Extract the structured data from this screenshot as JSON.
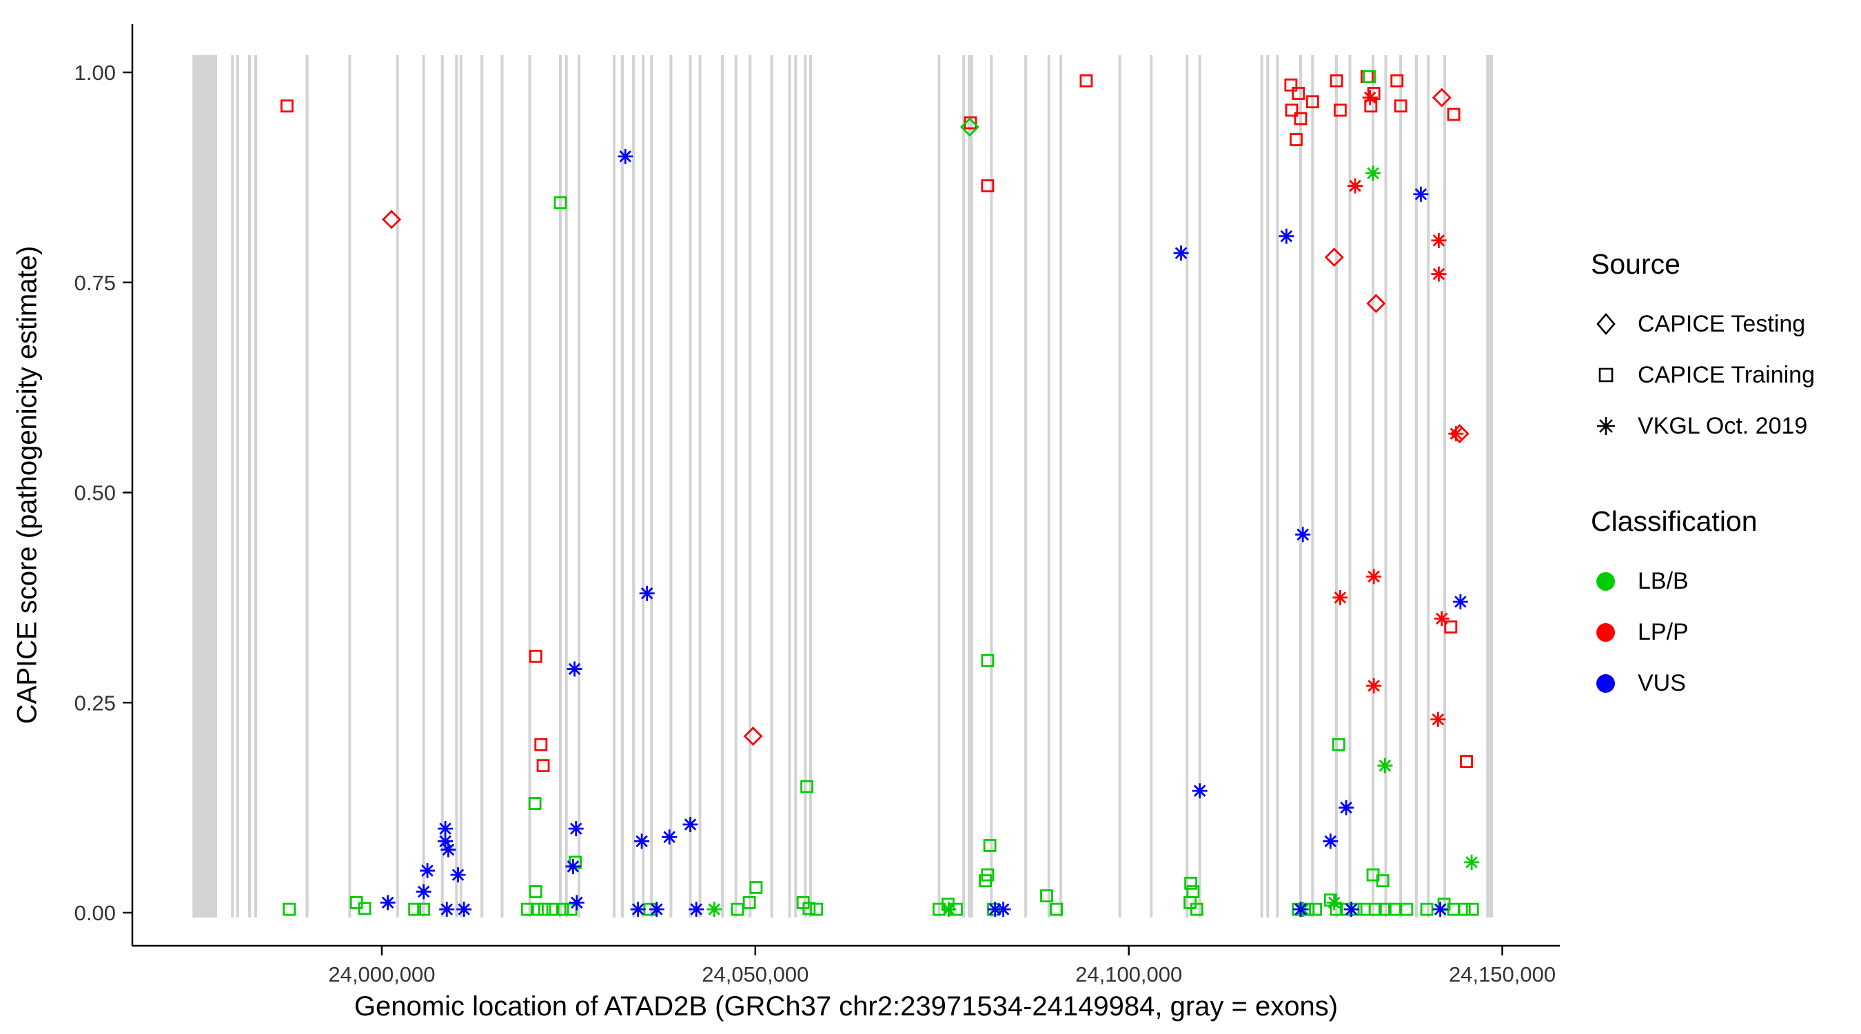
{
  "axes": {
    "y_title": "CAPICE score (pathogenicity estimate)",
    "x_title": "Genomic location of ATAD2B (GRCh37 chr2:23971534-24149984, gray = exons)"
  },
  "legend": {
    "source": {
      "title": "Source",
      "items": [
        {
          "label": "CAPICE Testing",
          "shape": "diamond"
        },
        {
          "label": "CAPICE Training",
          "shape": "square"
        },
        {
          "label": "VKGL Oct. 2019",
          "shape": "asterisk"
        }
      ]
    },
    "classification": {
      "title": "Classification",
      "items": [
        {
          "label": "LB/B",
          "color": "#00CD00"
        },
        {
          "label": "LP/P",
          "color": "#FF0000"
        },
        {
          "label": "VUS",
          "color": "#0000FF"
        }
      ]
    }
  },
  "chart_data": {
    "type": "scatter",
    "title": "",
    "xlabel": "Genomic location of ATAD2B (GRCh37 chr2:23971534-24149984, gray = exons)",
    "ylabel": "CAPICE score (pathogenicity estimate)",
    "xlim": [
      23966600,
      24157700
    ],
    "ylim": [
      0,
      1
    ],
    "grid": false,
    "legend_position": "right",
    "x_ticks": [
      {
        "value": 24000000,
        "label": "24,000,000"
      },
      {
        "value": 24050000,
        "label": "24,050,000"
      },
      {
        "value": 24100000,
        "label": "24,100,000"
      },
      {
        "value": 24150000,
        "label": "24,150,000"
      }
    ],
    "y_ticks": [
      {
        "value": 0,
        "label": "0.00"
      },
      {
        "value": 0.25,
        "label": "0.25"
      },
      {
        "value": 0.5,
        "label": "0.50"
      },
      {
        "value": 0.75,
        "label": "0.75"
      },
      {
        "value": 1,
        "label": "1.00"
      }
    ],
    "exon_color": "#D3D3D3",
    "axis_color": "#000000",
    "tick_label_color": "#333333",
    "classification_colors": {
      "LB/B": "#00CD00",
      "LP/P": "#FF0000",
      "VUS": "#0000FF"
    },
    "source_shapes": {
      "CAPICE Testing": "diamond",
      "CAPICE Training": "square",
      "VKGL Oct. 2019": "asterisk"
    },
    "exons_format": [
      "center_position_bp",
      "width_bp"
    ],
    "exons": [
      [
        23976300,
        3300
      ],
      [
        23980000,
        350
      ],
      [
        23980700,
        350
      ],
      [
        23982300,
        400
      ],
      [
        23983100,
        400
      ],
      [
        23990000,
        350
      ],
      [
        23995700,
        350
      ],
      [
        24002100,
        350
      ],
      [
        24005600,
        350
      ],
      [
        24008100,
        350
      ],
      [
        24010000,
        350
      ],
      [
        24010600,
        350
      ],
      [
        24013400,
        350
      ],
      [
        24016100,
        350
      ],
      [
        24019800,
        350
      ],
      [
        24023900,
        350
      ],
      [
        24024700,
        350
      ],
      [
        24026400,
        350
      ],
      [
        24031100,
        350
      ],
      [
        24032200,
        350
      ],
      [
        24033700,
        350
      ],
      [
        24035000,
        350
      ],
      [
        24036100,
        350
      ],
      [
        24038700,
        350
      ],
      [
        24041300,
        350
      ],
      [
        24042600,
        350
      ],
      [
        24045600,
        350
      ],
      [
        24047400,
        350
      ],
      [
        24049300,
        350
      ],
      [
        24052200,
        350
      ],
      [
        24054600,
        350
      ],
      [
        24055400,
        350
      ],
      [
        24056700,
        350
      ],
      [
        24057400,
        350
      ],
      [
        24074600,
        350
      ],
      [
        24077900,
        350
      ],
      [
        24078800,
        700
      ],
      [
        24081600,
        350
      ],
      [
        24086200,
        350
      ],
      [
        24089300,
        350
      ],
      [
        24090900,
        350
      ],
      [
        24098800,
        350
      ],
      [
        24103000,
        350
      ],
      [
        24107800,
        350
      ],
      [
        24109500,
        350
      ],
      [
        24117800,
        350
      ],
      [
        24118600,
        350
      ],
      [
        24119900,
        350
      ],
      [
        24123000,
        350
      ],
      [
        24124600,
        350
      ],
      [
        24127800,
        350
      ],
      [
        24129600,
        350
      ],
      [
        24132700,
        350
      ],
      [
        24134400,
        350
      ],
      [
        24136400,
        350
      ],
      [
        24138500,
        350
      ],
      [
        24140100,
        350
      ],
      [
        24142300,
        350
      ],
      [
        24148300,
        900
      ]
    ],
    "points_format": [
      "genomic_position",
      "capice_score",
      "source",
      "classification"
    ],
    "points": [
      [
        23987300,
        0.96,
        "CAPICE Training",
        "LP/P"
      ],
      [
        24020600,
        0.305,
        "CAPICE Training",
        "LP/P"
      ],
      [
        24021300,
        0.2,
        "CAPICE Training",
        "LP/P"
      ],
      [
        24021600,
        0.175,
        "CAPICE Training",
        "LP/P"
      ],
      [
        24078800,
        0.94,
        "CAPICE Training",
        "LP/P"
      ],
      [
        24081100,
        0.865,
        "CAPICE Training",
        "LP/P"
      ],
      [
        24094300,
        0.99,
        "CAPICE Training",
        "LP/P"
      ],
      [
        24121700,
        0.985,
        "CAPICE Training",
        "LP/P"
      ],
      [
        24122700,
        0.975,
        "CAPICE Training",
        "LP/P"
      ],
      [
        24121800,
        0.955,
        "CAPICE Training",
        "LP/P"
      ],
      [
        24123000,
        0.945,
        "CAPICE Training",
        "LP/P"
      ],
      [
        24122400,
        0.92,
        "CAPICE Training",
        "LP/P"
      ],
      [
        24124600,
        0.965,
        "CAPICE Training",
        "LP/P"
      ],
      [
        24127800,
        0.99,
        "CAPICE Training",
        "LP/P"
      ],
      [
        24128300,
        0.955,
        "CAPICE Training",
        "LP/P"
      ],
      [
        24131900,
        0.995,
        "CAPICE Training",
        "LP/P"
      ],
      [
        24132800,
        0.975,
        "CAPICE Training",
        "LP/P"
      ],
      [
        24132400,
        0.96,
        "CAPICE Training",
        "LP/P"
      ],
      [
        24135900,
        0.99,
        "CAPICE Training",
        "LP/P"
      ],
      [
        24136400,
        0.96,
        "CAPICE Training",
        "LP/P"
      ],
      [
        24143500,
        0.95,
        "CAPICE Training",
        "LP/P"
      ],
      [
        24143100,
        0.34,
        "CAPICE Training",
        "LP/P"
      ],
      [
        24145200,
        0.18,
        "CAPICE Training",
        "LP/P"
      ],
      [
        24001300,
        0.825,
        "CAPICE Testing",
        "LP/P"
      ],
      [
        24049700,
        0.21,
        "CAPICE Testing",
        "LP/P"
      ],
      [
        24127500,
        0.78,
        "CAPICE Testing",
        "LP/P"
      ],
      [
        24133100,
        0.725,
        "CAPICE Testing",
        "LP/P"
      ],
      [
        24141900,
        0.97,
        "CAPICE Testing",
        "LP/P"
      ],
      [
        24144300,
        0.57,
        "CAPICE Testing",
        "LP/P"
      ],
      [
        24130300,
        0.865,
        "VKGL Oct. 2019",
        "LP/P"
      ],
      [
        24132300,
        0.97,
        "VKGL Oct. 2019",
        "LP/P"
      ],
      [
        24141500,
        0.8,
        "VKGL Oct. 2019",
        "LP/P"
      ],
      [
        24141500,
        0.76,
        "VKGL Oct. 2019",
        "LP/P"
      ],
      [
        24143800,
        0.57,
        "VKGL Oct. 2019",
        "LP/P"
      ],
      [
        24132800,
        0.4,
        "VKGL Oct. 2019",
        "LP/P"
      ],
      [
        24128300,
        0.375,
        "VKGL Oct. 2019",
        "LP/P"
      ],
      [
        24141900,
        0.35,
        "VKGL Oct. 2019",
        "LP/P"
      ],
      [
        24132800,
        0.27,
        "VKGL Oct. 2019",
        "LP/P"
      ],
      [
        24141400,
        0.23,
        "VKGL Oct. 2019",
        "LP/P"
      ],
      [
        24078700,
        0.935,
        "CAPICE Testing",
        "LB/B"
      ],
      [
        24132700,
        0.88,
        "VKGL Oct. 2019",
        "LB/B"
      ],
      [
        24134300,
        0.175,
        "VKGL Oct. 2019",
        "LB/B"
      ],
      [
        24145900,
        0.06,
        "VKGL Oct. 2019",
        "LB/B"
      ],
      [
        24044500,
        0.004,
        "VKGL Oct. 2019",
        "LB/B"
      ],
      [
        24075900,
        0.004,
        "VKGL Oct. 2019",
        "LB/B"
      ],
      [
        24123300,
        0.004,
        "VKGL Oct. 2019",
        "LB/B"
      ],
      [
        24127500,
        0.012,
        "VKGL Oct. 2019",
        "LB/B"
      ],
      [
        23987600,
        0.004,
        "CAPICE Training",
        "LB/B"
      ],
      [
        23996600,
        0.012,
        "CAPICE Training",
        "LB/B"
      ],
      [
        23997700,
        0.005,
        "CAPICE Training",
        "LB/B"
      ],
      [
        24004400,
        0.004,
        "CAPICE Training",
        "LB/B"
      ],
      [
        24005600,
        0.004,
        "CAPICE Training",
        "LB/B"
      ],
      [
        24023900,
        0.845,
        "CAPICE Training",
        "LB/B"
      ],
      [
        24020500,
        0.13,
        "CAPICE Training",
        "LB/B"
      ],
      [
        24020600,
        0.025,
        "CAPICE Training",
        "LB/B"
      ],
      [
        24019500,
        0.004,
        "CAPICE Training",
        "LB/B"
      ],
      [
        24020800,
        0.004,
        "CAPICE Training",
        "LB/B"
      ],
      [
        24021800,
        0.004,
        "CAPICE Training",
        "LB/B"
      ],
      [
        24022900,
        0.004,
        "CAPICE Training",
        "LB/B"
      ],
      [
        24024200,
        0.004,
        "CAPICE Training",
        "LB/B"
      ],
      [
        24025300,
        0.004,
        "CAPICE Training",
        "LB/B"
      ],
      [
        24025900,
        0.06,
        "CAPICE Training",
        "LB/B"
      ],
      [
        24035900,
        0.004,
        "CAPICE Training",
        "LB/B"
      ],
      [
        24050100,
        0.03,
        "CAPICE Training",
        "LB/B"
      ],
      [
        24049200,
        0.012,
        "CAPICE Training",
        "LB/B"
      ],
      [
        24047600,
        0.004,
        "CAPICE Training",
        "LB/B"
      ],
      [
        24056900,
        0.15,
        "CAPICE Training",
        "LB/B"
      ],
      [
        24056400,
        0.012,
        "CAPICE Training",
        "LB/B"
      ],
      [
        24057200,
        0.005,
        "CAPICE Training",
        "LB/B"
      ],
      [
        24058200,
        0.004,
        "CAPICE Training",
        "LB/B"
      ],
      [
        24074600,
        0.004,
        "CAPICE Training",
        "LB/B"
      ],
      [
        24075800,
        0.01,
        "CAPICE Training",
        "LB/B"
      ],
      [
        24076900,
        0.004,
        "CAPICE Training",
        "LB/B"
      ],
      [
        24081100,
        0.3,
        "CAPICE Training",
        "LB/B"
      ],
      [
        24081400,
        0.08,
        "CAPICE Training",
        "LB/B"
      ],
      [
        24081100,
        0.045,
        "CAPICE Training",
        "LB/B"
      ],
      [
        24080800,
        0.038,
        "CAPICE Training",
        "LB/B"
      ],
      [
        24081900,
        0.004,
        "CAPICE Training",
        "LB/B"
      ],
      [
        24089000,
        0.02,
        "CAPICE Training",
        "LB/B"
      ],
      [
        24090300,
        0.004,
        "CAPICE Training",
        "LB/B"
      ],
      [
        24108300,
        0.035,
        "CAPICE Training",
        "LB/B"
      ],
      [
        24108600,
        0.025,
        "CAPICE Training",
        "LB/B"
      ],
      [
        24108200,
        0.012,
        "CAPICE Training",
        "LB/B"
      ],
      [
        24109100,
        0.004,
        "CAPICE Training",
        "LB/B"
      ],
      [
        24128100,
        0.2,
        "CAPICE Training",
        "LB/B"
      ],
      [
        24132700,
        0.045,
        "CAPICE Training",
        "LB/B"
      ],
      [
        24134000,
        0.038,
        "CAPICE Training",
        "LB/B"
      ],
      [
        24132200,
        0.995,
        "CAPICE Training",
        "LB/B"
      ],
      [
        24122700,
        0.004,
        "CAPICE Training",
        "LB/B"
      ],
      [
        24124000,
        0.004,
        "CAPICE Training",
        "LB/B"
      ],
      [
        24125000,
        0.004,
        "CAPICE Training",
        "LB/B"
      ],
      [
        24127000,
        0.015,
        "CAPICE Training",
        "LB/B"
      ],
      [
        24127800,
        0.004,
        "CAPICE Training",
        "LB/B"
      ],
      [
        24129100,
        0.004,
        "CAPICE Training",
        "LB/B"
      ],
      [
        24130400,
        0.004,
        "CAPICE Training",
        "LB/B"
      ],
      [
        24131500,
        0.004,
        "CAPICE Training",
        "LB/B"
      ],
      [
        24133000,
        0.004,
        "CAPICE Training",
        "LB/B"
      ],
      [
        24134300,
        0.004,
        "CAPICE Training",
        "LB/B"
      ],
      [
        24135600,
        0.004,
        "CAPICE Training",
        "LB/B"
      ],
      [
        24137200,
        0.004,
        "CAPICE Training",
        "LB/B"
      ],
      [
        24139900,
        0.004,
        "CAPICE Training",
        "LB/B"
      ],
      [
        24142200,
        0.01,
        "CAPICE Training",
        "LB/B"
      ],
      [
        24143500,
        0.004,
        "CAPICE Training",
        "LB/B"
      ],
      [
        24144900,
        0.004,
        "CAPICE Training",
        "LB/B"
      ],
      [
        24146000,
        0.004,
        "CAPICE Training",
        "LB/B"
      ],
      [
        24032600,
        0.9,
        "VKGL Oct. 2019",
        "VUS"
      ],
      [
        24035500,
        0.38,
        "VKGL Oct. 2019",
        "VUS"
      ],
      [
        24107000,
        0.785,
        "VKGL Oct. 2019",
        "VUS"
      ],
      [
        24121100,
        0.805,
        "VKGL Oct. 2019",
        "VUS"
      ],
      [
        24139100,
        0.855,
        "VKGL Oct. 2019",
        "VUS"
      ],
      [
        24123300,
        0.45,
        "VKGL Oct. 2019",
        "VUS"
      ],
      [
        24144400,
        0.37,
        "VKGL Oct. 2019",
        "VUS"
      ],
      [
        24129100,
        0.125,
        "VKGL Oct. 2019",
        "VUS"
      ],
      [
        24109500,
        0.145,
        "VKGL Oct. 2019",
        "VUS"
      ],
      [
        24127000,
        0.085,
        "VKGL Oct. 2019",
        "VUS"
      ],
      [
        24008500,
        0.1,
        "VKGL Oct. 2019",
        "VUS"
      ],
      [
        24008500,
        0.085,
        "VKGL Oct. 2019",
        "VUS"
      ],
      [
        24008900,
        0.075,
        "VKGL Oct. 2019",
        "VUS"
      ],
      [
        24006100,
        0.05,
        "VKGL Oct. 2019",
        "VUS"
      ],
      [
        24010200,
        0.045,
        "VKGL Oct. 2019",
        "VUS"
      ],
      [
        24005600,
        0.025,
        "VKGL Oct. 2019",
        "VUS"
      ],
      [
        24000800,
        0.012,
        "VKGL Oct. 2019",
        "VUS"
      ],
      [
        24008700,
        0.004,
        "VKGL Oct. 2019",
        "VUS"
      ],
      [
        24011000,
        0.004,
        "VKGL Oct. 2019",
        "VUS"
      ],
      [
        24025800,
        0.29,
        "VKGL Oct. 2019",
        "VUS"
      ],
      [
        24026000,
        0.1,
        "VKGL Oct. 2019",
        "VUS"
      ],
      [
        24025600,
        0.055,
        "VKGL Oct. 2019",
        "VUS"
      ],
      [
        24026100,
        0.012,
        "VKGL Oct. 2019",
        "VUS"
      ],
      [
        24034800,
        0.085,
        "VKGL Oct. 2019",
        "VUS"
      ],
      [
        24038500,
        0.09,
        "VKGL Oct. 2019",
        "VUS"
      ],
      [
        24041300,
        0.105,
        "VKGL Oct. 2019",
        "VUS"
      ],
      [
        24034300,
        0.004,
        "VKGL Oct. 2019",
        "VUS"
      ],
      [
        24036800,
        0.004,
        "VKGL Oct. 2019",
        "VUS"
      ],
      [
        24042100,
        0.004,
        "VKGL Oct. 2019",
        "VUS"
      ],
      [
        24082100,
        0.004,
        "VKGL Oct. 2019",
        "VUS"
      ],
      [
        24083200,
        0.004,
        "VKGL Oct. 2019",
        "VUS"
      ],
      [
        24123000,
        0.004,
        "VKGL Oct. 2019",
        "VUS"
      ],
      [
        24129800,
        0.004,
        "VKGL Oct. 2019",
        "VUS"
      ],
      [
        24141700,
        0.004,
        "VKGL Oct. 2019",
        "VUS"
      ]
    ]
  }
}
